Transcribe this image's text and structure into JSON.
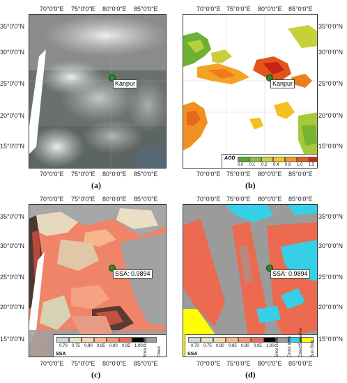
{
  "panels": [
    {
      "id": "a",
      "caption": "(a)",
      "lon_ticks": [
        "70°0'0\"E",
        "75°0'0\"E",
        "80°0'0\"E",
        "85°0'0\"E"
      ],
      "lat_ticks": [
        "35°0'0\"N",
        "30°0'0\"N",
        "25°0'0\"N",
        "20°0'0\"N",
        "15°0'0\"N"
      ],
      "site_label": "Kanpur",
      "kind": "true-color"
    },
    {
      "id": "b",
      "caption": "(b)",
      "lon_ticks": [
        "70°0'0\"E",
        "75°0'0\"E",
        "80°0'0\"E",
        "85°0'0\"E"
      ],
      "lat_ticks": [
        "35°0'0\"N",
        "30°0'0\"N",
        "25°0'0\"N",
        "20°0'0\"N",
        "15°0'0\"N"
      ],
      "site_label": "Kanpur",
      "kind": "aod",
      "legend": {
        "title": "AOD",
        "ticks": [
          "0.0",
          "0.1",
          "0.2",
          "0.4",
          "0.6",
          "1.0",
          "1.5"
        ],
        "colors": [
          "#4daa2a",
          "#8cc23a",
          "#c8d43c",
          "#f2c61f",
          "#f29a1c",
          "#e85a17",
          "#d42314"
        ]
      }
    },
    {
      "id": "c",
      "caption": "(c)",
      "lon_ticks": [
        "70°0'0\"E",
        "75°0'0\"E",
        "80°0'0\"E",
        "85°0'0\"E"
      ],
      "lat_ticks": [
        "35°0'0\"N",
        "30°0'0\"N",
        "25°0'0\"N",
        "20°0'0\"N",
        "15°0'0\"N"
      ],
      "site_label": "SSA: 0.9894",
      "kind": "ssa",
      "legend": {
        "title": "SSA",
        "ticks": [
          "0.70",
          "0.75",
          "0.80",
          "0.85",
          "0.90",
          "0.95",
          "1.00"
        ],
        "colors": [
          "#c9d9d4",
          "#e7e3c3",
          "#f7d7a7",
          "#f6b98c",
          "#f49376",
          "#ec6a5a",
          "#000000",
          "#9b9b9b"
        ],
        "extra": [
          "Error Data",
          "Cloud"
        ]
      }
    },
    {
      "id": "d",
      "caption": "(d)",
      "lon_ticks": [
        "70°0'0\"E",
        "75°0'0\"E",
        "80°0'0\"E",
        "85°0'0\"E"
      ],
      "lat_ticks": [
        "35°0'0\"N",
        "30°0'0\"N",
        "25°0'0\"N",
        "20°0'0\"N",
        "15°0'0\"N"
      ],
      "site_label": "SSA: 0.9894",
      "kind": "ssa-class",
      "legend": {
        "title": "SSA",
        "ticks": [
          "0.70",
          "0.75",
          "0.80",
          "0.85",
          "0.90",
          "0.95",
          "1.00"
        ],
        "colors": [
          "#c9d9d4",
          "#e7e3c3",
          "#f7d7a7",
          "#f6b98c",
          "#f49376",
          "#ec6a5a",
          "#000000",
          "#9b9b9b",
          "#35d0e8",
          "#ffff00"
        ],
        "extra": [
          "Error Data",
          "Cross track",
          "Cloud/Snow/ice",
          "Sun Glint"
        ]
      }
    }
  ]
}
